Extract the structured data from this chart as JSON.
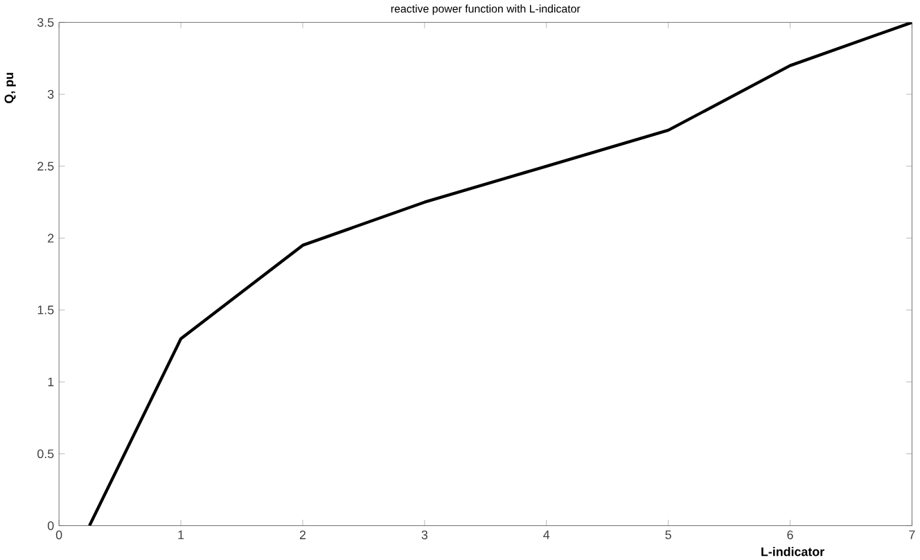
{
  "chart_data": {
    "type": "line",
    "title": "reactive power function with L-indicator",
    "xlabel": "L-indicator",
    "ylabel": "Q, pu",
    "x": [
      0.25,
      1,
      2,
      3,
      4,
      5,
      6,
      7
    ],
    "series": [
      {
        "color": "#000000",
        "values": [
          0,
          1.3,
          1.95,
          2.25,
          2.5,
          2.75,
          3.2,
          3.5
        ]
      }
    ],
    "xlim": [
      0,
      7
    ],
    "ylim": [
      0,
      3.5
    ],
    "xticks": [
      0,
      1,
      2,
      3,
      4,
      5,
      6,
      7
    ],
    "yticks": [
      0,
      0.5,
      1,
      1.5,
      2,
      2.5,
      3,
      3.5
    ],
    "grid": false,
    "marker": "none",
    "line_style": "solid"
  }
}
